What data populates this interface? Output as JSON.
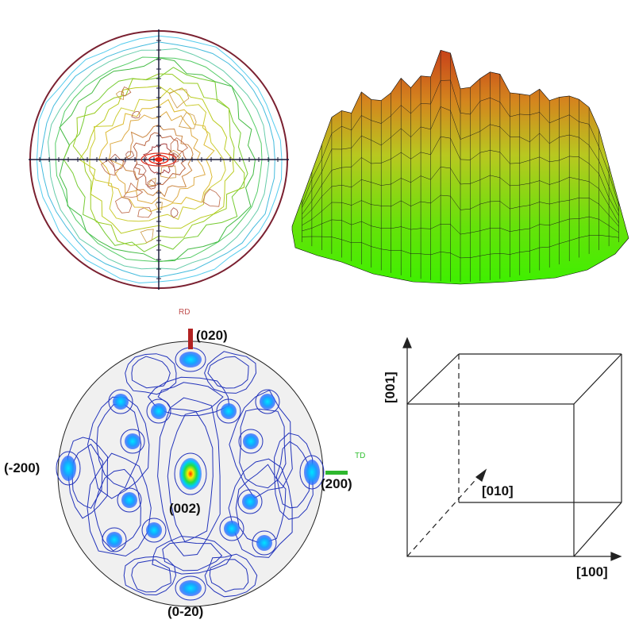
{
  "panels": {
    "pole_figure_contour": {
      "title": ""
    },
    "surface_3d": {
      "title": ""
    },
    "pole_figure_labeled": {
      "rd_label": "RD",
      "td_label": "TD",
      "poles": {
        "top": "(020)",
        "left": "(-200)",
        "right": "(200)",
        "center": "(002)",
        "bottom": "(0-20)"
      }
    },
    "cube": {
      "axis_z": "[001]",
      "axis_y": "[010]",
      "axis_x": "[100]"
    }
  },
  "colors": {
    "rd_marker": "#b22222",
    "td_marker": "#2eb82e",
    "contour_blue": "#2233bb",
    "surface_top": "#c84a1c",
    "surface_bottom": "#44ee00"
  }
}
